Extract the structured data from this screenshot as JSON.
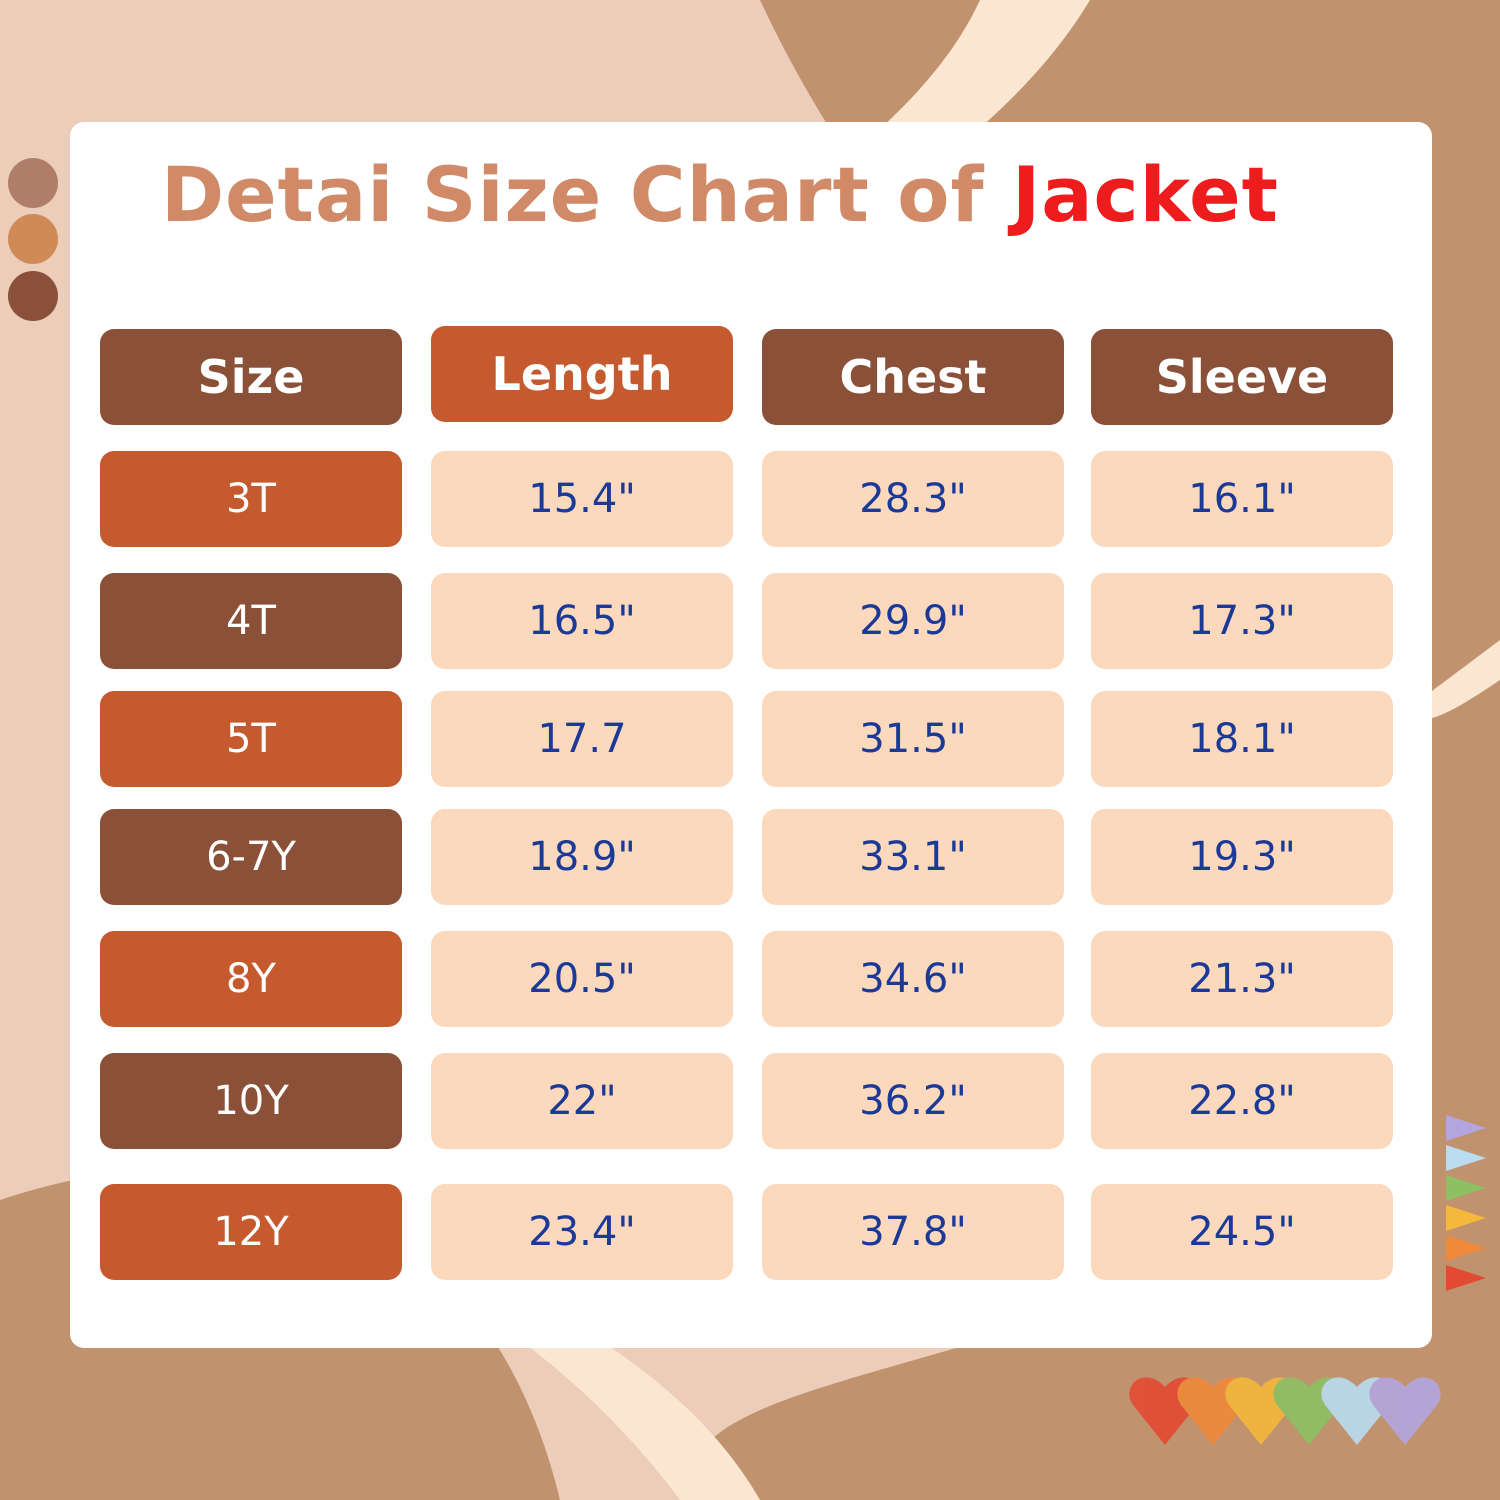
{
  "title": {
    "main": "Detai Size Chart of ",
    "accent": "Jacket"
  },
  "colors": {
    "title": "#d08a67",
    "accent": "#ee1c1c",
    "dark": "#8b5038",
    "orange": "#c45a2e",
    "cell": "#fcd9bc",
    "value_text": "#1b3a98"
  },
  "chart_data": {
    "type": "table",
    "columns": [
      "Size",
      "Length",
      "Chest",
      "Sleeve"
    ],
    "rows": [
      [
        "3T",
        "15.4\"",
        "28.3\"",
        "16.1\""
      ],
      [
        "4T",
        "16.5\"",
        "29.9\"",
        "17.3\""
      ],
      [
        "5T",
        "17.7",
        "31.5\"",
        "18.1\""
      ],
      [
        "6-7Y",
        "18.9\"",
        "33.1\"",
        "19.3\""
      ],
      [
        "8Y",
        "20.5\"",
        "34.6\"",
        "21.3\""
      ],
      [
        "10Y",
        "22\"",
        "36.2\"",
        "22.8\""
      ],
      [
        "12Y",
        "23.4\"",
        "37.8\"",
        "24.5\""
      ]
    ]
  }
}
